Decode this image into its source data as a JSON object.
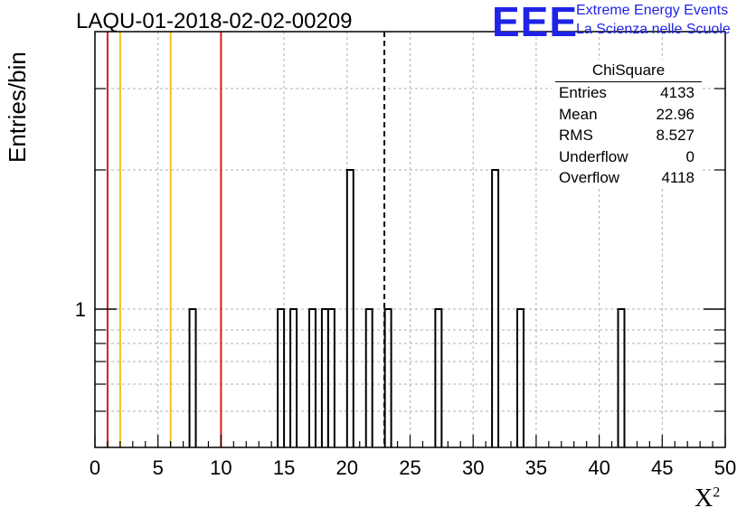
{
  "chart_data": {
    "type": "bar",
    "title": "LAQU-01-2018-02-02-00209",
    "ylabel": "Entries/bin",
    "xlabel": "X",
    "xlabel_superscript": "2",
    "xlim": [
      0,
      50
    ],
    "x_ticks": [
      "0",
      "5",
      "10",
      "15",
      "20",
      "25",
      "30",
      "35",
      "40",
      "45",
      "50"
    ],
    "y_scale": "log",
    "y_tick_labels": [
      "1"
    ],
    "grid": true,
    "bin_width": 0.5,
    "bins": [
      {
        "x": 7.5,
        "value": 1
      },
      {
        "x": 14.5,
        "value": 1
      },
      {
        "x": 15.5,
        "value": 1
      },
      {
        "x": 17.0,
        "value": 1
      },
      {
        "x": 18.0,
        "value": 1
      },
      {
        "x": 18.5,
        "value": 1
      },
      {
        "x": 20.0,
        "value": 2
      },
      {
        "x": 21.5,
        "value": 1
      },
      {
        "x": 23.0,
        "value": 1
      },
      {
        "x": 27.0,
        "value": 1
      },
      {
        "x": 31.5,
        "value": 2
      },
      {
        "x": 33.5,
        "value": 1
      },
      {
        "x": 41.5,
        "value": 1
      }
    ],
    "vertical_lines": [
      {
        "x": 1.0,
        "color": "#d42020",
        "style": "solid"
      },
      {
        "x": 2.0,
        "color": "#f5c211",
        "style": "solid"
      },
      {
        "x": 6.0,
        "color": "#f5c211",
        "style": "solid"
      },
      {
        "x": 10.0,
        "color": "#d42020",
        "style": "solid"
      },
      {
        "x": 22.96,
        "color": "#000000",
        "style": "dashed"
      }
    ],
    "stats_box": {
      "title": "ChiSquare",
      "rows": [
        {
          "label": "Entries",
          "value": "4133"
        },
        {
          "label": "Mean",
          "value": "22.96"
        },
        {
          "label": "RMS",
          "value": "8.527"
        },
        {
          "label": "Underflow",
          "value": "0"
        },
        {
          "label": "Overflow",
          "value": "4118"
        }
      ]
    }
  },
  "logo": {
    "mark": "EEE",
    "line1": "Extreme Energy Events",
    "line2": "La Scienza nelle Scuole",
    "color": "#1f23e6"
  }
}
